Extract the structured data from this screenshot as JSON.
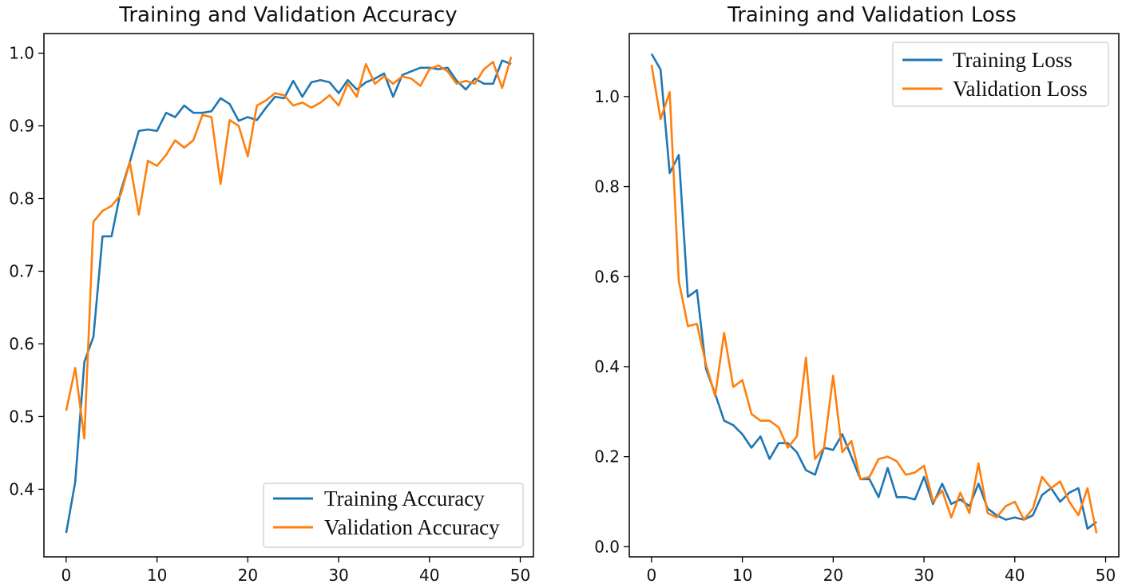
{
  "chart_data": [
    {
      "type": "line",
      "title": "Training and Validation Accuracy",
      "xlabel": "",
      "ylabel": "",
      "xlim": [
        -2.45,
        51.45
      ],
      "ylim": [
        0.307,
        1.027
      ],
      "xticks": [
        0,
        10,
        20,
        30,
        40,
        50
      ],
      "yticks": [
        0.4,
        0.5,
        0.6,
        0.7,
        0.8,
        0.9,
        1.0
      ],
      "xtick_labels": [
        "0",
        "10",
        "20",
        "30",
        "40",
        "50"
      ],
      "ytick_labels": [
        "0.4",
        "0.5",
        "0.6",
        "0.7",
        "0.8",
        "0.9",
        "1.0"
      ],
      "legend_position": "lower-right",
      "x": [
        0,
        1,
        2,
        3,
        4,
        5,
        6,
        7,
        8,
        9,
        10,
        11,
        12,
        13,
        14,
        15,
        16,
        17,
        18,
        19,
        20,
        21,
        22,
        23,
        24,
        25,
        26,
        27,
        28,
        29,
        30,
        31,
        32,
        33,
        34,
        35,
        36,
        37,
        38,
        39,
        40,
        41,
        42,
        43,
        44,
        45,
        46,
        47,
        48,
        49
      ],
      "series": [
        {
          "name": "Training Accuracy",
          "color": "#1f77b4",
          "values": [
            0.34,
            0.41,
            0.575,
            0.61,
            0.748,
            0.748,
            0.81,
            0.85,
            0.893,
            0.895,
            0.893,
            0.918,
            0.912,
            0.928,
            0.918,
            0.918,
            0.92,
            0.938,
            0.93,
            0.907,
            0.912,
            0.908,
            0.925,
            0.94,
            0.938,
            0.962,
            0.94,
            0.96,
            0.963,
            0.96,
            0.945,
            0.963,
            0.95,
            0.96,
            0.965,
            0.972,
            0.94,
            0.97,
            0.975,
            0.98,
            0.98,
            0.978,
            0.98,
            0.962,
            0.95,
            0.965,
            0.958,
            0.958,
            0.99,
            0.985
          ]
        },
        {
          "name": "Validation Accuracy",
          "color": "#ff7f0e",
          "values": [
            0.508,
            0.567,
            0.47,
            0.768,
            0.783,
            0.79,
            0.805,
            0.85,
            0.778,
            0.852,
            0.845,
            0.86,
            0.88,
            0.87,
            0.88,
            0.915,
            0.912,
            0.82,
            0.908,
            0.9,
            0.858,
            0.928,
            0.935,
            0.945,
            0.942,
            0.928,
            0.932,
            0.925,
            0.932,
            0.942,
            0.928,
            0.958,
            0.94,
            0.985,
            0.958,
            0.968,
            0.958,
            0.968,
            0.965,
            0.955,
            0.978,
            0.983,
            0.975,
            0.958,
            0.962,
            0.958,
            0.978,
            0.988,
            0.952,
            0.995
          ]
        }
      ]
    },
    {
      "type": "line",
      "title": "Training and Validation Loss",
      "xlabel": "",
      "ylabel": "",
      "xlim": [
        -2.45,
        51.45
      ],
      "ylim": [
        -0.0225,
        1.14
      ],
      "xticks": [
        0,
        10,
        20,
        30,
        40,
        50
      ],
      "yticks": [
        0.0,
        0.2,
        0.4,
        0.6,
        0.8,
        1.0
      ],
      "xtick_labels": [
        "0",
        "10",
        "20",
        "30",
        "40",
        "50"
      ],
      "ytick_labels": [
        "0.0",
        "0.2",
        "0.4",
        "0.6",
        "0.8",
        "1.0"
      ],
      "legend_position": "top-right",
      "x": [
        0,
        1,
        2,
        3,
        4,
        5,
        6,
        7,
        8,
        9,
        10,
        11,
        12,
        13,
        14,
        15,
        16,
        17,
        18,
        19,
        20,
        21,
        22,
        23,
        24,
        25,
        26,
        27,
        28,
        29,
        30,
        31,
        32,
        33,
        34,
        35,
        36,
        37,
        38,
        39,
        40,
        41,
        42,
        43,
        44,
        45,
        46,
        47,
        48,
        49
      ],
      "series": [
        {
          "name": "Training Loss",
          "color": "#1f77b4",
          "values": [
            1.095,
            1.06,
            0.83,
            0.87,
            0.555,
            0.57,
            0.395,
            0.34,
            0.28,
            0.27,
            0.25,
            0.22,
            0.245,
            0.195,
            0.23,
            0.23,
            0.21,
            0.17,
            0.16,
            0.22,
            0.215,
            0.25,
            0.2,
            0.15,
            0.15,
            0.11,
            0.175,
            0.11,
            0.11,
            0.105,
            0.155,
            0.095,
            0.14,
            0.095,
            0.105,
            0.09,
            0.14,
            0.085,
            0.07,
            0.06,
            0.065,
            0.06,
            0.07,
            0.115,
            0.13,
            0.1,
            0.12,
            0.13,
            0.04,
            0.055
          ]
        },
        {
          "name": "Validation Loss",
          "color": "#ff7f0e",
          "values": [
            1.07,
            0.95,
            1.01,
            0.59,
            0.49,
            0.495,
            0.405,
            0.335,
            0.475,
            0.355,
            0.37,
            0.295,
            0.28,
            0.28,
            0.265,
            0.22,
            0.245,
            0.42,
            0.195,
            0.22,
            0.38,
            0.21,
            0.235,
            0.15,
            0.155,
            0.195,
            0.2,
            0.19,
            0.16,
            0.165,
            0.18,
            0.1,
            0.125,
            0.065,
            0.12,
            0.075,
            0.185,
            0.075,
            0.065,
            0.09,
            0.1,
            0.06,
            0.085,
            0.155,
            0.13,
            0.145,
            0.1,
            0.07,
            0.13,
            0.03
          ]
        }
      ]
    }
  ]
}
